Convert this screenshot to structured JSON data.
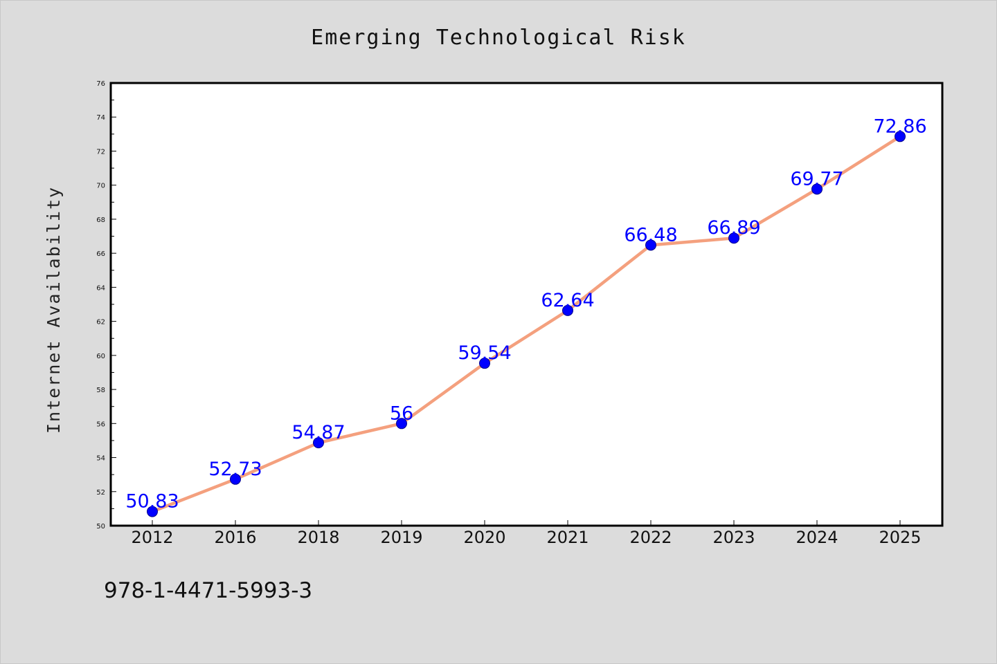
{
  "chart_data": {
    "type": "line",
    "title": "Emerging Technological Risk",
    "xlabel": "",
    "ylabel": "Internet Availability",
    "categories": [
      "2012",
      "2016",
      "2018",
      "2019",
      "2020",
      "2021",
      "2022",
      "2023",
      "2024",
      "2025"
    ],
    "series": [
      {
        "values": [
          50.83,
          52.73,
          54.87,
          56,
          59.54,
          62.64,
          66.48,
          66.89,
          69.77,
          72.86
        ],
        "labels": [
          "50.83",
          "52.73",
          "54.87",
          "56",
          "59.54",
          "62.64",
          "66.48",
          "66.89",
          "69.77",
          "72.86"
        ]
      }
    ],
    "ylim": [
      50,
      76
    ],
    "yticks": [
      50,
      52,
      54,
      56,
      58,
      60,
      62,
      64,
      66,
      68,
      70,
      72,
      74,
      76
    ],
    "ytick_labels": [
      "50",
      "52",
      "54",
      "56",
      "58",
      "60",
      "62",
      "64",
      "66",
      "68",
      "70",
      "72",
      "74",
      "76"
    ],
    "grid": false,
    "legend": "none",
    "colors": {
      "line": "#f4a07e",
      "marker": "#0000ff",
      "marker_edge": "#00008b",
      "data_label": "#0000ff",
      "background": "#dcdcdc",
      "plot_background": "#ffffff",
      "frame": "#000000"
    }
  },
  "footer": {
    "text": "978-1-4471-5993-3"
  }
}
